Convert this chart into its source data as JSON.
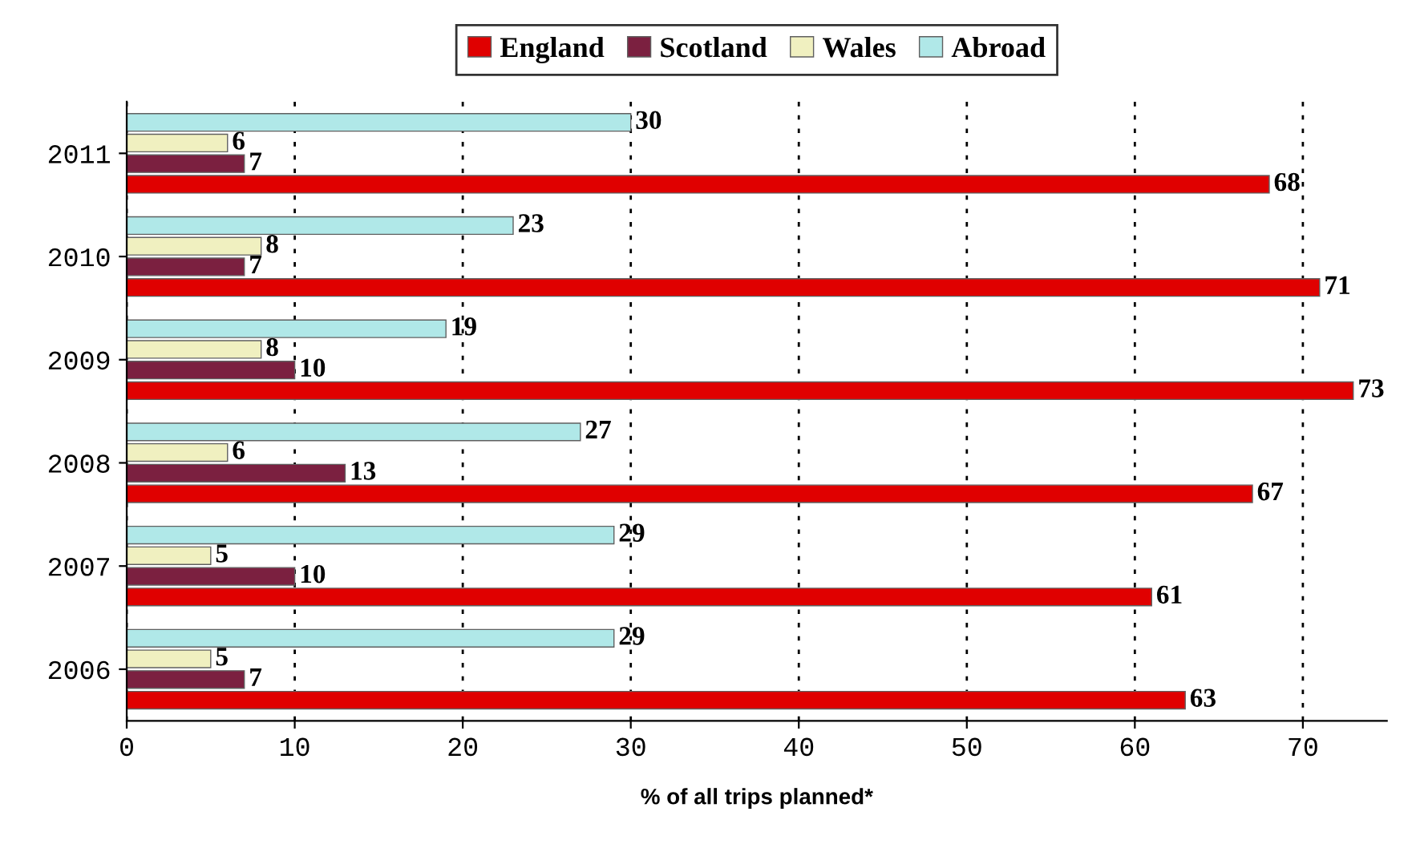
{
  "chart_data": {
    "type": "bar",
    "orientation": "horizontal",
    "xlabel": "% of all trips planned*",
    "categories": [
      "2011",
      "2010",
      "2009",
      "2008",
      "2007",
      "2006"
    ],
    "series": [
      {
        "name": "England",
        "color": "#e00000",
        "values": [
          68,
          71,
          73,
          67,
          61,
          63
        ]
      },
      {
        "name": "Scotland",
        "color": "#7b2040",
        "values": [
          7,
          7,
          10,
          13,
          10,
          7
        ]
      },
      {
        "name": "Wales",
        "color": "#f0f0c0",
        "values": [
          6,
          8,
          8,
          6,
          5,
          5
        ]
      },
      {
        "name": "Abroad",
        "color": "#b0e8e8",
        "values": [
          30,
          23,
          19,
          27,
          29,
          29
        ]
      }
    ],
    "xlim": [
      0,
      75
    ],
    "xticks": [
      0,
      10,
      20,
      30,
      40,
      50,
      60,
      70
    ],
    "grid": "x",
    "legend": "top",
    "data_labels": true
  }
}
